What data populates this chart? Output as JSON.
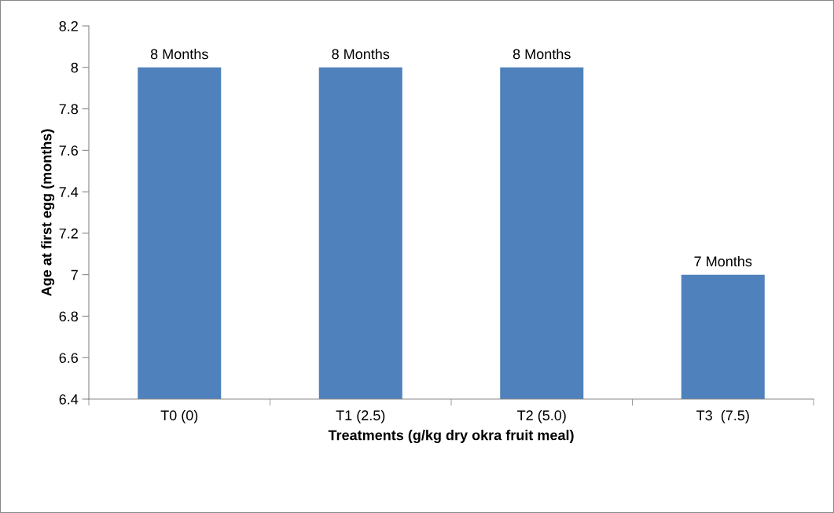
{
  "chart_data": {
    "type": "bar",
    "xlabel": "Treatments (g/kg dry okra fruit meal)",
    "ylabel": "Age at first egg (months)",
    "categories": [
      "T0 (0)",
      "T1 (2.5)",
      "T2 (5.0)",
      "T3  (7.5)"
    ],
    "values": [
      8,
      8,
      8,
      7
    ],
    "value_labels": [
      "8 Months",
      "8 Months",
      "8 Months",
      "7 Months"
    ],
    "color": "#4f81bd",
    "ylim": [
      6.4,
      8.2
    ],
    "yticks": [
      6.4,
      6.6,
      6.8,
      7,
      7.2,
      7.4,
      7.6,
      7.8,
      8,
      8.2
    ],
    "grid": false,
    "legend": false
  }
}
